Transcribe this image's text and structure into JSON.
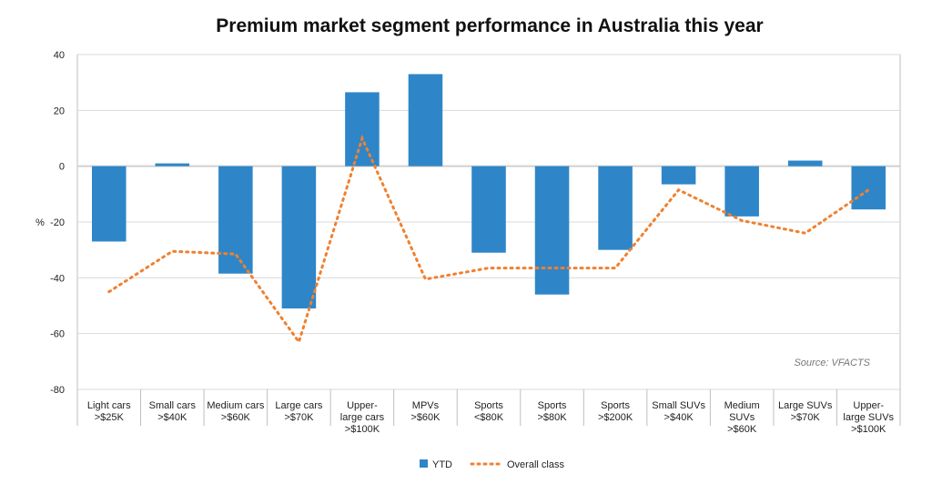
{
  "chart_data": {
    "type": "bar",
    "title": "Premium market segment performance in Australia this year",
    "ylabel": "%",
    "ylim": [
      -80,
      40
    ],
    "yticks": [
      "40",
      "20",
      "0",
      "-20",
      "-40",
      "-60",
      "-80"
    ],
    "categories": [
      [
        "Light cars",
        ">$25K"
      ],
      [
        "Small cars",
        ">$40K"
      ],
      [
        "Medium cars",
        ">$60K"
      ],
      [
        "Large cars",
        ">$70K"
      ],
      [
        "Upper-",
        "large cars",
        ">$100K"
      ],
      [
        "MPVs",
        ">$60K"
      ],
      [
        "Sports",
        "<$80K"
      ],
      [
        "Sports",
        ">$80K"
      ],
      [
        "Sports",
        ">$200K"
      ],
      [
        "Small SUVs",
        ">$40K"
      ],
      [
        "Medium",
        "SUVs",
        ">$60K"
      ],
      [
        "Large SUVs",
        ">$70K"
      ],
      [
        "Upper-",
        "large SUVs",
        ">$100K"
      ]
    ],
    "series": [
      {
        "name": "YTD",
        "type": "bar",
        "color": "#2E86C8",
        "values": [
          -27,
          1,
          -38.5,
          -51,
          26.5,
          33,
          -31,
          -46,
          -30,
          -6.5,
          -18,
          2,
          -15.5
        ]
      },
      {
        "name": "Overall class",
        "type": "line",
        "style": "dotted",
        "color": "#F08030",
        "values": [
          -45,
          -30.5,
          -31.5,
          -63,
          10,
          -40.5,
          -36.5,
          -36.5,
          -36.5,
          -8.5,
          -19.5,
          -24,
          -8.5
        ]
      }
    ],
    "annotation": "Source: VFACTS",
    "grid": true,
    "legend_position": "bottom-center"
  }
}
